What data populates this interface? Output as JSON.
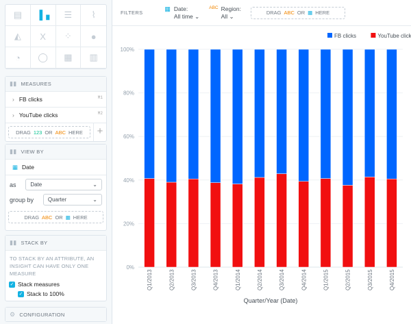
{
  "chart_types": [
    "table",
    "column",
    "bar",
    "line",
    "area",
    "headline",
    "scatter",
    "bubble",
    "pie",
    "donut",
    "treemap",
    "heatmap"
  ],
  "measures": {
    "title": "MEASURES",
    "items": [
      {
        "label": "FB clicks",
        "tag": "M1"
      },
      {
        "label": "YouTube clicks",
        "tag": "M2"
      }
    ],
    "drag": {
      "a": "DRAG",
      "b": "123",
      "c": "OR",
      "d": "ABC",
      "e": "HERE"
    }
  },
  "view_by": {
    "title": "VIEW BY",
    "attribute": "Date",
    "as_label": "as",
    "as_value": "Date",
    "group_label": "group by",
    "group_value": "Quarter",
    "drag": {
      "a": "DRAG",
      "d": "ABC",
      "c": "OR",
      "e": "HERE"
    }
  },
  "stack_by": {
    "title": "STACK BY",
    "note": "TO STACK BY AN ATTRIBUTE, AN INSIGHT CAN HAVE ONLY ONE MEASURE",
    "stack_measures": "Stack measures",
    "stack_100": "Stack to 100%"
  },
  "configuration": {
    "title": "CONFIGURATION"
  },
  "filters": {
    "title": "FILTERS",
    "date_label": "Date:",
    "date_value": "All time",
    "region_label": "Region:",
    "region_value": "All",
    "drag": {
      "a": "DRAG",
      "d": "ABC",
      "c": "OR",
      "e": "HERE"
    }
  },
  "chart_data": {
    "type": "bar",
    "stacked": "percent",
    "categories": [
      "Q1/2013",
      "Q2/2013",
      "Q3/2013",
      "Q4/2013",
      "Q1/2014",
      "Q2/2014",
      "Q3/2014",
      "Q4/2014",
      "Q1/2015",
      "Q2/2015",
      "Q3/2015",
      "Q4/2015"
    ],
    "series": [
      {
        "name": "FB clicks",
        "color": "#0066ff",
        "values": [
          59.3,
          61.0,
          59.5,
          61.2,
          61.8,
          58.8,
          57.1,
          60.6,
          59.3,
          62.4,
          58.6,
          59.5
        ]
      },
      {
        "name": "YouTube clicks",
        "color": "#f10f10",
        "values": [
          40.7,
          39.0,
          40.5,
          38.8,
          38.2,
          41.2,
          42.9,
          39.4,
          40.7,
          37.6,
          41.4,
          40.5
        ]
      }
    ],
    "yticks": [
      "0%",
      "20%",
      "40%",
      "60%",
      "80%",
      "100%"
    ],
    "ylim": [
      0,
      100
    ],
    "xlabel": "Quarter/Year (Date)",
    "legend": "top-right",
    "grid": true
  }
}
